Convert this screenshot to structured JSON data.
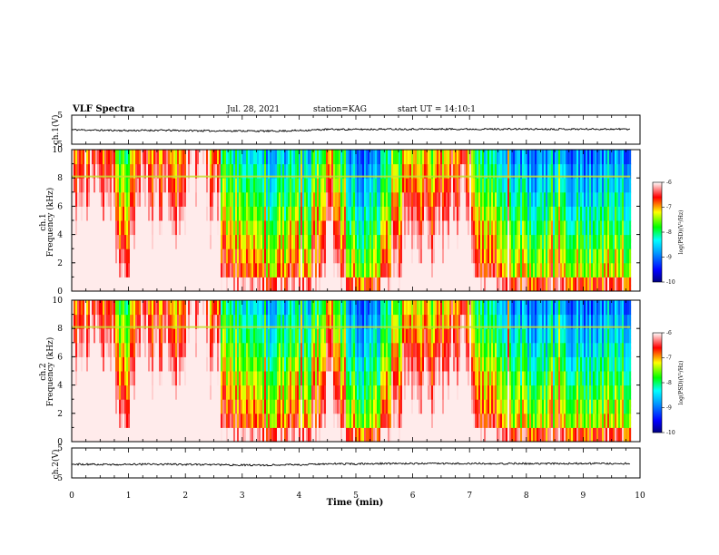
{
  "header": {
    "title": "VLF Spectra",
    "date": "Jul. 28, 2021",
    "station": "station=KAG",
    "start": "start UT =  14:10:1"
  },
  "chart_data": [
    {
      "type": "line",
      "ylabel": "ch.1(V)",
      "ylim": [
        -5,
        5
      ],
      "yticks": [
        "5",
        "-5"
      ],
      "x": [
        0,
        0.5,
        1,
        1.5,
        2,
        2.5,
        3,
        3.5,
        4,
        4.5,
        5,
        5.5,
        6,
        6.5,
        7,
        7.5,
        8,
        8.5,
        9,
        9.5,
        9.83
      ],
      "values": [
        0.0,
        -0.2,
        -0.3,
        -0.2,
        -0.3,
        -0.4,
        -0.4,
        -0.5,
        -0.3,
        0.1,
        0.1,
        0.2,
        0.2,
        0.2,
        0.2,
        0.2,
        0.2,
        0.2,
        0.2,
        0.2,
        0.2
      ]
    },
    {
      "type": "heatmap",
      "ylabel": "ch.1 Frequency (kHz)",
      "ylim": [
        0,
        10
      ],
      "yticks": [
        "0",
        "2",
        "4",
        "6",
        "8",
        "10"
      ],
      "colorbar": {
        "label": "log(PSD)(V²/Hz)",
        "range": [
          -10,
          -6
        ],
        "ticks": [
          "-6",
          "-7",
          "-8",
          "-9",
          "-10"
        ]
      },
      "segment_starts_min": [
        0.0,
        0.25,
        0.5,
        0.75,
        1.0,
        1.2,
        1.4,
        1.6,
        1.8,
        2.0,
        2.2,
        2.4,
        2.6,
        2.8,
        3.0,
        3.2,
        3.4,
        3.6,
        3.8,
        4.0,
        4.2,
        4.4,
        4.6,
        4.8,
        5.0,
        5.2,
        5.4,
        5.6,
        5.8,
        6.0,
        6.2,
        6.4,
        6.6,
        6.8,
        7.0,
        7.25,
        7.5,
        7.75,
        8.0,
        8.25,
        8.5,
        8.75,
        9.0,
        9.25,
        9.5,
        9.83
      ],
      "activity": [
        0.85,
        0.9,
        0.85,
        0.55,
        0.8,
        0.9,
        0.8,
        0.85,
        0.75,
        1.0,
        0.95,
        0.8,
        0.5,
        0.45,
        0.5,
        0.45,
        0.35,
        0.4,
        0.45,
        0.4,
        0.55,
        0.7,
        0.55,
        0.35,
        0.25,
        0.3,
        0.45,
        0.6,
        0.75,
        0.75,
        0.7,
        0.75,
        0.8,
        0.85,
        0.55,
        0.45,
        0.4,
        0.35,
        0.3,
        0.3,
        0.35,
        0.3,
        0.25,
        0.3,
        0.3
      ]
    },
    {
      "type": "heatmap",
      "ylabel": "ch.2 Frequency (kHz)",
      "ylim": [
        0,
        10
      ],
      "yticks": [
        "0",
        "2",
        "4",
        "6",
        "8",
        "10"
      ],
      "colorbar": {
        "label": "log(PSD)(V²/Hz)",
        "range": [
          -10,
          -6
        ],
        "ticks": [
          "-6",
          "-7",
          "-8",
          "-9",
          "-10"
        ]
      },
      "segment_starts_min": [
        0.0,
        0.25,
        0.5,
        0.75,
        1.0,
        1.2,
        1.4,
        1.6,
        1.8,
        2.0,
        2.2,
        2.4,
        2.6,
        2.8,
        3.0,
        3.2,
        3.4,
        3.6,
        3.8,
        4.0,
        4.2,
        4.4,
        4.6,
        4.8,
        5.0,
        5.2,
        5.4,
        5.6,
        5.8,
        6.0,
        6.2,
        6.4,
        6.6,
        6.8,
        7.0,
        7.25,
        7.5,
        7.75,
        8.0,
        8.25,
        8.5,
        8.75,
        9.0,
        9.25,
        9.5,
        9.83
      ],
      "activity": [
        0.85,
        0.9,
        0.85,
        0.55,
        0.8,
        0.9,
        0.8,
        0.85,
        0.75,
        1.0,
        0.95,
        0.8,
        0.5,
        0.45,
        0.5,
        0.45,
        0.35,
        0.4,
        0.45,
        0.4,
        0.55,
        0.7,
        0.55,
        0.35,
        0.25,
        0.3,
        0.45,
        0.6,
        0.75,
        0.75,
        0.7,
        0.75,
        0.8,
        0.85,
        0.55,
        0.45,
        0.4,
        0.35,
        0.3,
        0.3,
        0.35,
        0.3,
        0.25,
        0.3,
        0.3
      ]
    },
    {
      "type": "line",
      "ylabel": "ch.2(V)",
      "ylim": [
        -5,
        5
      ],
      "yticks": [
        "5",
        "-5"
      ],
      "x": [
        0,
        0.5,
        1,
        1.5,
        2,
        2.5,
        3,
        3.5,
        4,
        4.5,
        5,
        5.5,
        6,
        6.5,
        7,
        7.5,
        8,
        8.5,
        9,
        9.5,
        9.83
      ],
      "values": [
        -0.4,
        -0.5,
        -0.5,
        -0.4,
        -0.5,
        -0.6,
        -0.7,
        -0.7,
        -0.6,
        -0.3,
        -0.3,
        -0.2,
        -0.2,
        -0.2,
        -0.2,
        -0.2,
        -0.2,
        -0.2,
        -0.2,
        -0.2,
        -0.2
      ]
    }
  ],
  "xaxis": {
    "label": "Time (min)",
    "xlim": [
      0,
      10
    ],
    "ticks": [
      "0",
      "1",
      "2",
      "3",
      "4",
      "5",
      "6",
      "7",
      "8",
      "9",
      "10"
    ]
  },
  "colors": {
    "colormap": [
      "#000080",
      "#0000ff",
      "#00a0ff",
      "#00ffff",
      "#00ff00",
      "#ffff00",
      "#ff0000",
      "#ffffff"
    ]
  }
}
